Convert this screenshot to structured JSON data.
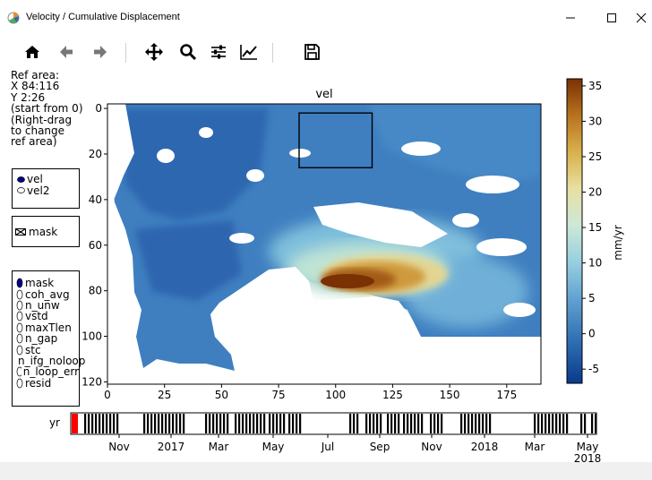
{
  "window": {
    "title": "Velocity / Cumulative Displacement",
    "controls": [
      "minimize",
      "maximize",
      "close"
    ]
  },
  "toolbar": {
    "buttons": [
      "home-icon",
      "back-icon",
      "forward-icon",
      "pan-icon",
      "zoom-icon",
      "configure-subplots-icon",
      "edit-axis-icon",
      "save-icon"
    ]
  },
  "ref_area": {
    "lines": [
      "Ref area:",
      "X 84:116",
      "Y 2:26",
      "(start from 0)",
      "(Right-drag",
      "to change",
      "ref area)"
    ]
  },
  "vel_radio": {
    "options": [
      "vel",
      "vel2"
    ],
    "selected": "vel"
  },
  "mask_check": {
    "label": "mask"
  },
  "mask_radio": {
    "options": [
      "mask",
      "coh_avg",
      "n_unw",
      "vstd",
      "maxTlen",
      "n_gap",
      "stc",
      "n_ifg_noloop",
      "n_loop_err",
      "resid"
    ],
    "selected": "mask"
  },
  "chart_data": [
    {
      "type": "heatmap",
      "title": "vel",
      "x_ticks": [
        0,
        25,
        50,
        75,
        100,
        125,
        150,
        175
      ],
      "y_ticks": [
        0,
        20,
        40,
        60,
        80,
        100,
        120
      ],
      "xlim": [
        0,
        190
      ],
      "ylim": [
        121,
        -2
      ],
      "ref_box": {
        "x": [
          84,
          116
        ],
        "y": [
          2,
          26
        ]
      },
      "colorbar": {
        "label": "mm/yr",
        "ticks": [
          -5,
          0,
          5,
          10,
          15,
          20,
          25,
          30,
          35
        ],
        "range": [
          -7,
          36
        ],
        "colors": [
          "#0a3a8c",
          "#2f6fb3",
          "#5f9fcf",
          "#98d0e0",
          "#cde8d8",
          "#e8dfa0",
          "#d9b04a",
          "#b7721f",
          "#7a3104"
        ]
      }
    },
    {
      "type": "timeline",
      "ylabel": "yr",
      "tick_labels": [
        "Nov",
        "2017",
        "Mar",
        "May",
        "Jul",
        "Sep",
        "Nov",
        "2018",
        "Mar",
        "May\n2018"
      ],
      "highlight_color": "#ff0000"
    }
  ]
}
